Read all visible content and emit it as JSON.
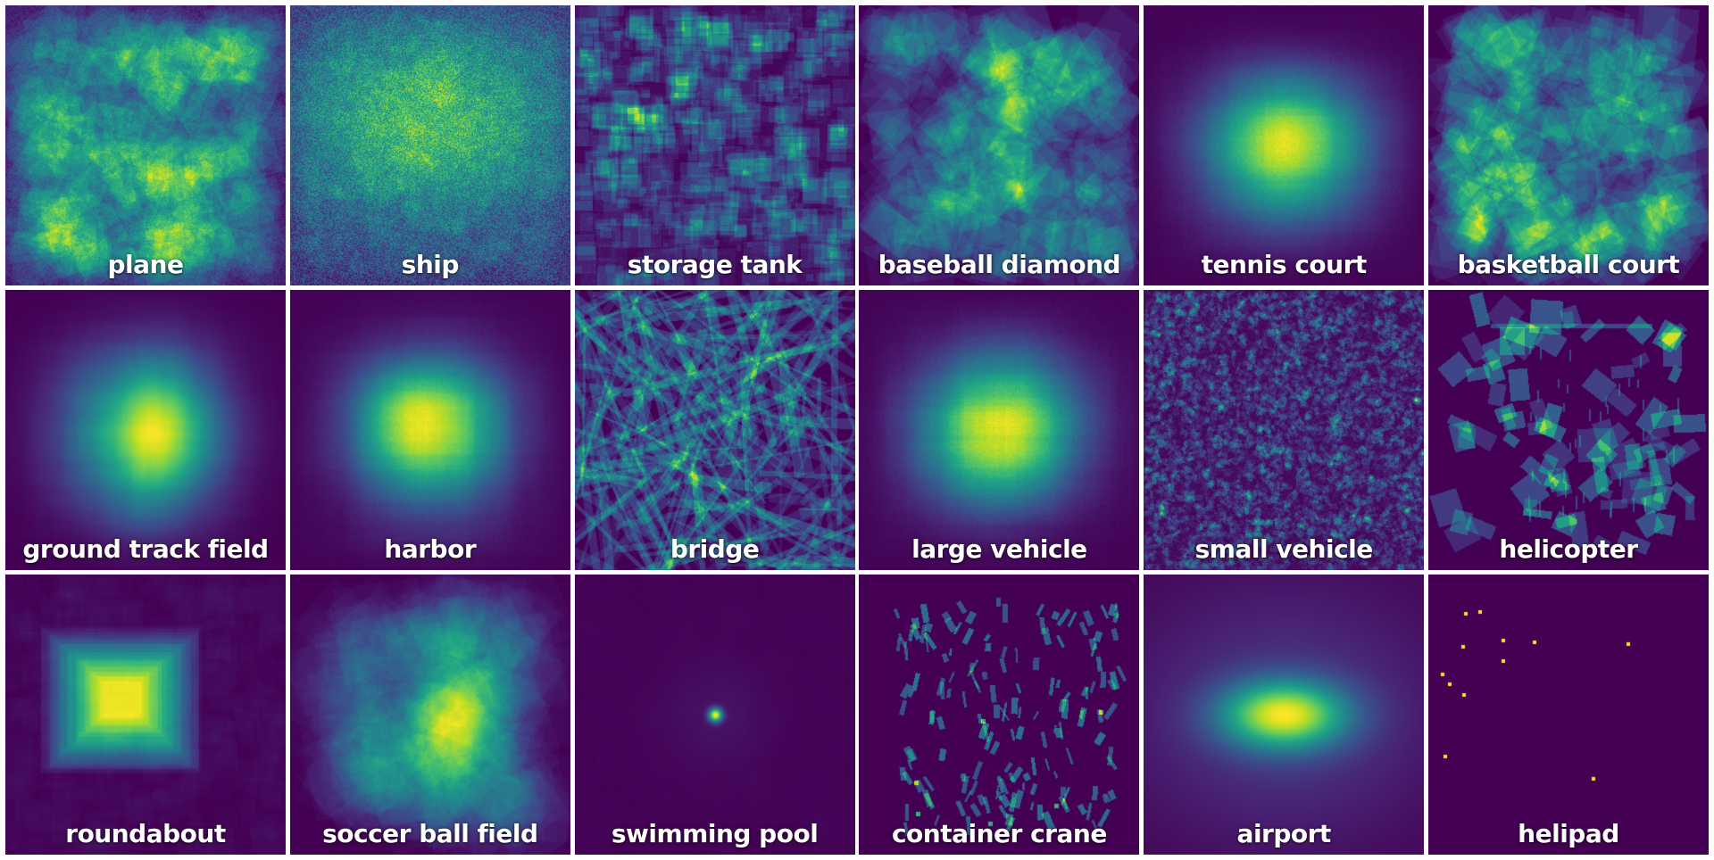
{
  "panels": [
    {
      "id": "plane",
      "label": "plane",
      "pattern": "blob-boxes"
    },
    {
      "id": "ship",
      "label": "ship",
      "pattern": "speckle-square"
    },
    {
      "id": "storage-tank",
      "label": "storage tank",
      "pattern": "small-squares"
    },
    {
      "id": "baseball-diamond",
      "label": "baseball diamond",
      "pattern": "rotated-boxes"
    },
    {
      "id": "tennis-court",
      "label": "tennis court",
      "pattern": "soft-square"
    },
    {
      "id": "basketball-court",
      "label": "basketball court",
      "pattern": "rotated-boxes"
    },
    {
      "id": "ground-track-field",
      "label": "ground track field",
      "pattern": "soft-square-diagonal"
    },
    {
      "id": "harbor",
      "label": "harbor",
      "pattern": "soft-square-streaks"
    },
    {
      "id": "bridge",
      "label": "bridge",
      "pattern": "lines"
    },
    {
      "id": "large-vehicle",
      "label": "large vehicle",
      "pattern": "soft-square"
    },
    {
      "id": "small-vehicle",
      "label": "small vehicle",
      "pattern": "uniform-noise"
    },
    {
      "id": "helicopter",
      "label": "helicopter",
      "pattern": "sparse-boxes"
    },
    {
      "id": "roundabout",
      "label": "roundabout",
      "pattern": "nested-square"
    },
    {
      "id": "soccer-ball-field",
      "label": "soccer ball field",
      "pattern": "rotated-boxes-soft"
    },
    {
      "id": "swimming-pool",
      "label": "swimming pool",
      "pattern": "center-point"
    },
    {
      "id": "container-crane",
      "label": "container crane",
      "pattern": "sparse-ticks"
    },
    {
      "id": "airport",
      "label": "airport",
      "pattern": "gaussian"
    },
    {
      "id": "helipad",
      "label": "helipad",
      "pattern": "dots"
    }
  ],
  "colormap": "viridis",
  "colors": {
    "low": "#440154",
    "mid": "#21918c",
    "high": "#fde725"
  }
}
